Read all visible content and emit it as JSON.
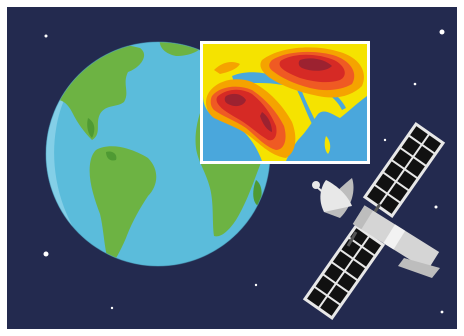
{
  "illustration": {
    "subject": "satellite-earth-observation",
    "elements": [
      "space-background",
      "stars",
      "earth-globe",
      "heatmap-inset-map",
      "satellite"
    ]
  },
  "colors": {
    "space": "#232a4f",
    "star": "#ffffff",
    "ocean": "#5bbcdb",
    "ocean_light": "#8fd3ea",
    "land": "#6db343",
    "land_dark": "#4f9a33",
    "inset_border": "#ffffff",
    "inset_ocean": "#4aa7dc",
    "heat_yellow": "#f5e300",
    "heat_orange": "#f5a300",
    "heat_red_orange": "#ef5a23",
    "heat_red": "#d62a25",
    "heat_dark": "#9c2230",
    "satellite_panel": "#111111",
    "satellite_frame": "#e8e8e8",
    "satellite_body": "#d5d5d5",
    "satellite_dark": "#555555"
  }
}
